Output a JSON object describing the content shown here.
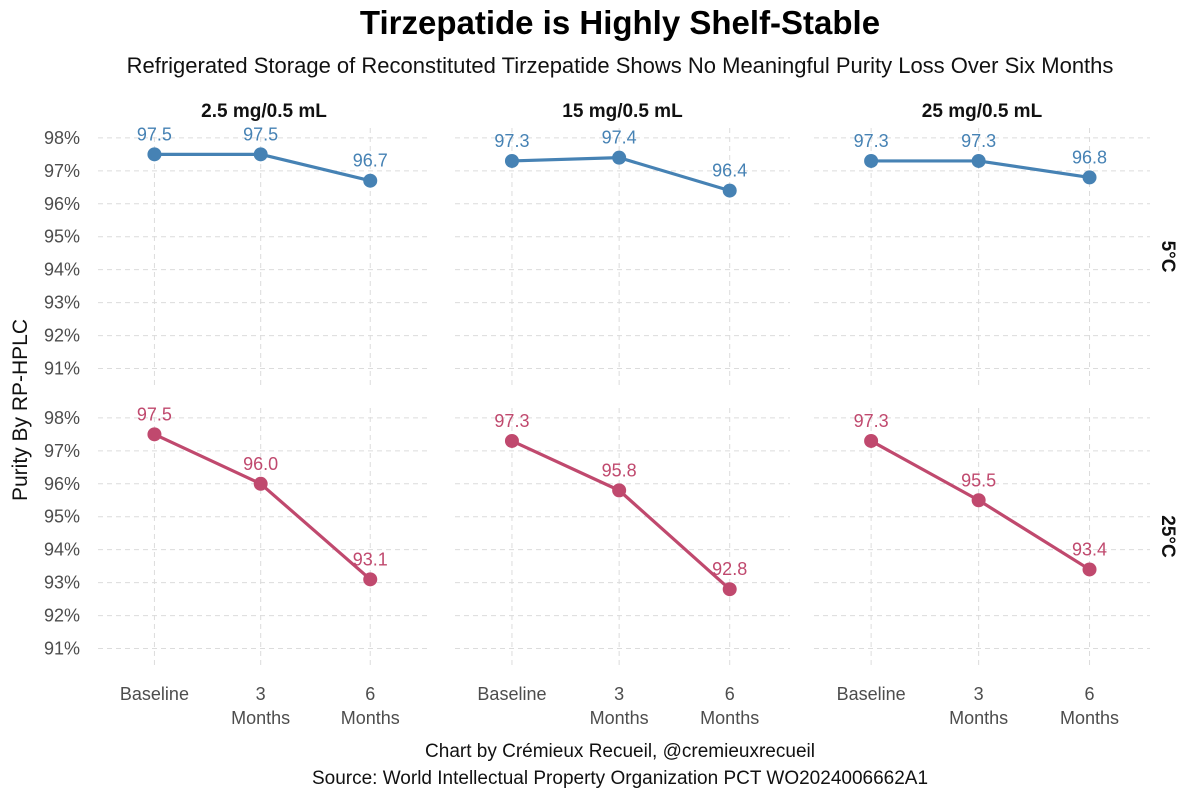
{
  "chart_data": {
    "type": "line",
    "title": "Tirzepatide is Highly Shelf-Stable",
    "subtitle": "Refrigerated Storage of Reconstituted Tirzepatide Shows No Meaningful Purity Loss Over Six Months",
    "ylabel": "Purity By RP-HPLC",
    "ylim": [
      90.5,
      98.3
    ],
    "yticks": [
      "91%",
      "92%",
      "93%",
      "94%",
      "95%",
      "96%",
      "97%",
      "98%"
    ],
    "ytick_values": [
      91,
      92,
      93,
      94,
      95,
      96,
      97,
      98
    ],
    "categories": [
      {
        "line1": "Baseline",
        "line2": ""
      },
      {
        "line1": "3",
        "line2": "Months"
      },
      {
        "line1": "6",
        "line2": "Months"
      }
    ],
    "columns": [
      "2.5 mg/0.5 mL",
      "15 mg/0.5 mL",
      "25 mg/0.5 mL"
    ],
    "rows": [
      {
        "label": "5°C",
        "color": "#4682b4"
      },
      {
        "label": "25°C",
        "color": "#c0496e"
      }
    ],
    "series": [
      {
        "row": 0,
        "col": 0,
        "values": [
          97.5,
          97.5,
          96.7
        ],
        "labels": [
          "97.5",
          "97.5",
          "96.7"
        ]
      },
      {
        "row": 0,
        "col": 1,
        "values": [
          97.3,
          97.4,
          96.4
        ],
        "labels": [
          "97.3",
          "97.4",
          "96.4"
        ]
      },
      {
        "row": 0,
        "col": 2,
        "values": [
          97.3,
          97.3,
          96.8
        ],
        "labels": [
          "97.3",
          "97.3",
          "96.8"
        ]
      },
      {
        "row": 1,
        "col": 0,
        "values": [
          97.5,
          96.0,
          93.1
        ],
        "labels": [
          "97.5",
          "96.0",
          "93.1"
        ]
      },
      {
        "row": 1,
        "col": 1,
        "values": [
          97.3,
          95.8,
          92.8
        ],
        "labels": [
          "97.3",
          "95.8",
          "92.8"
        ]
      },
      {
        "row": 1,
        "col": 2,
        "values": [
          97.3,
          95.5,
          93.4
        ],
        "labels": [
          "97.3",
          "95.5",
          "93.4"
        ]
      }
    ],
    "caption": [
      "Chart by Crémieux Recueil, @cremieuxrecueil",
      "Source: World Intellectual Property Organization PCT WO2024006662A1"
    ]
  }
}
